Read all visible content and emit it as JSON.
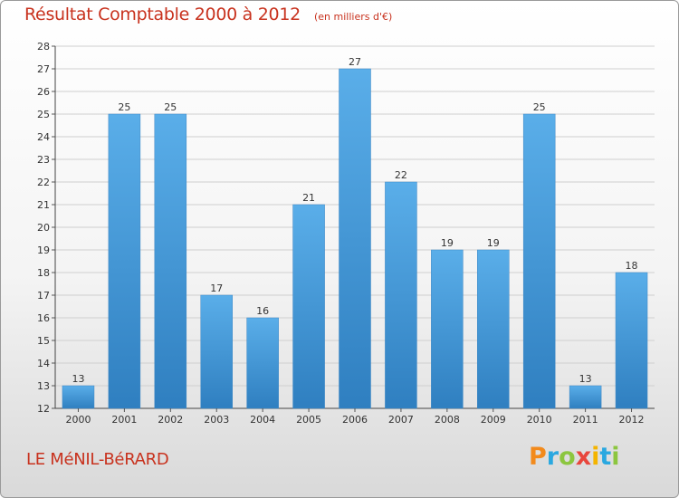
{
  "chart_data": {
    "type": "bar",
    "title": "Résultat Comptable 2000 à 2012",
    "unit_note": "(en milliers d'€)",
    "categories": [
      "2000",
      "2001",
      "2002",
      "2003",
      "2004",
      "2005",
      "2006",
      "2007",
      "2008",
      "2009",
      "2010",
      "2011",
      "2012"
    ],
    "values": [
      13,
      25,
      25,
      17,
      16,
      21,
      27,
      22,
      19,
      19,
      25,
      13,
      18
    ],
    "ylim": [
      12,
      28
    ],
    "yticks": [
      12,
      13,
      14,
      15,
      16,
      17,
      18,
      19,
      20,
      21,
      22,
      23,
      24,
      25,
      26,
      27,
      28
    ],
    "xlabel": "",
    "ylabel": "",
    "grid": true
  },
  "commune": "LE MéNIL-BéRARD",
  "logo": {
    "letters": [
      "P",
      "r",
      "o",
      "x",
      "i",
      "t",
      "i"
    ],
    "colors": [
      "#f28a1c",
      "#2aa8e0",
      "#8cc63f",
      "#e8463c",
      "#f4b400",
      "#2aa8e0",
      "#8cc63f"
    ]
  },
  "colors": {
    "bar_top": "#5aaee9",
    "bar_bottom": "#2f7fc0",
    "grid": "#cfcfcf",
    "title": "#c8321e"
  }
}
